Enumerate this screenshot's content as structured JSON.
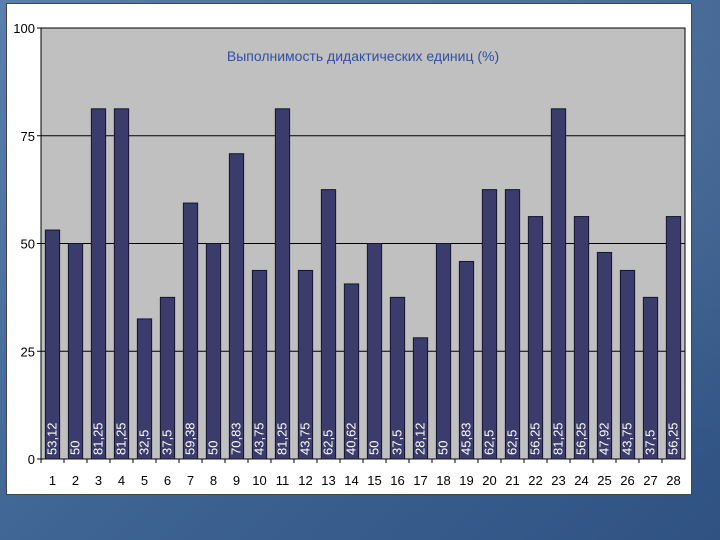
{
  "chart_data": {
    "type": "bar",
    "title": "Выполнимость дидактических единиц (%)",
    "xlabel": "",
    "ylabel": "",
    "ylim": [
      0,
      100
    ],
    "yticks": [
      "0",
      "25",
      "50",
      "75",
      "100"
    ],
    "grid": true,
    "categories": [
      "1",
      "2",
      "3",
      "4",
      "5",
      "6",
      "7",
      "8",
      "9",
      "10",
      "11",
      "12",
      "13",
      "14",
      "15",
      "16",
      "17",
      "18",
      "19",
      "20",
      "21",
      "22",
      "23",
      "24",
      "25",
      "26",
      "27",
      "28"
    ],
    "values": [
      53.12,
      50,
      81.25,
      81.25,
      32.5,
      37.5,
      59.38,
      50,
      70.83,
      43.75,
      81.25,
      43.75,
      62.5,
      40.62,
      50,
      37.5,
      28.12,
      50,
      45.83,
      62.5,
      62.5,
      56.25,
      81.25,
      56.25,
      47.92,
      43.75,
      37.5,
      56.25
    ],
    "value_labels": [
      "53,12",
      "50",
      "81,25",
      "81,25",
      "32,5",
      "37,5",
      "59,38",
      "50",
      "70,83",
      "43,75",
      "81,25",
      "43,75",
      "62,5",
      "40,62",
      "50",
      "37,5",
      "28,12",
      "50",
      "45,83",
      "62,5",
      "62,5",
      "56,25",
      "81,25",
      "56,25",
      "47,92",
      "43,75",
      "37,5",
      "56,25"
    ]
  },
  "colors": {
    "bar_fill": "#3b3c6c",
    "bar_stroke": "#15152e",
    "plot_bg": "#c0c0c0",
    "gridline": "#000000",
    "title": "#2f4fa6"
  }
}
